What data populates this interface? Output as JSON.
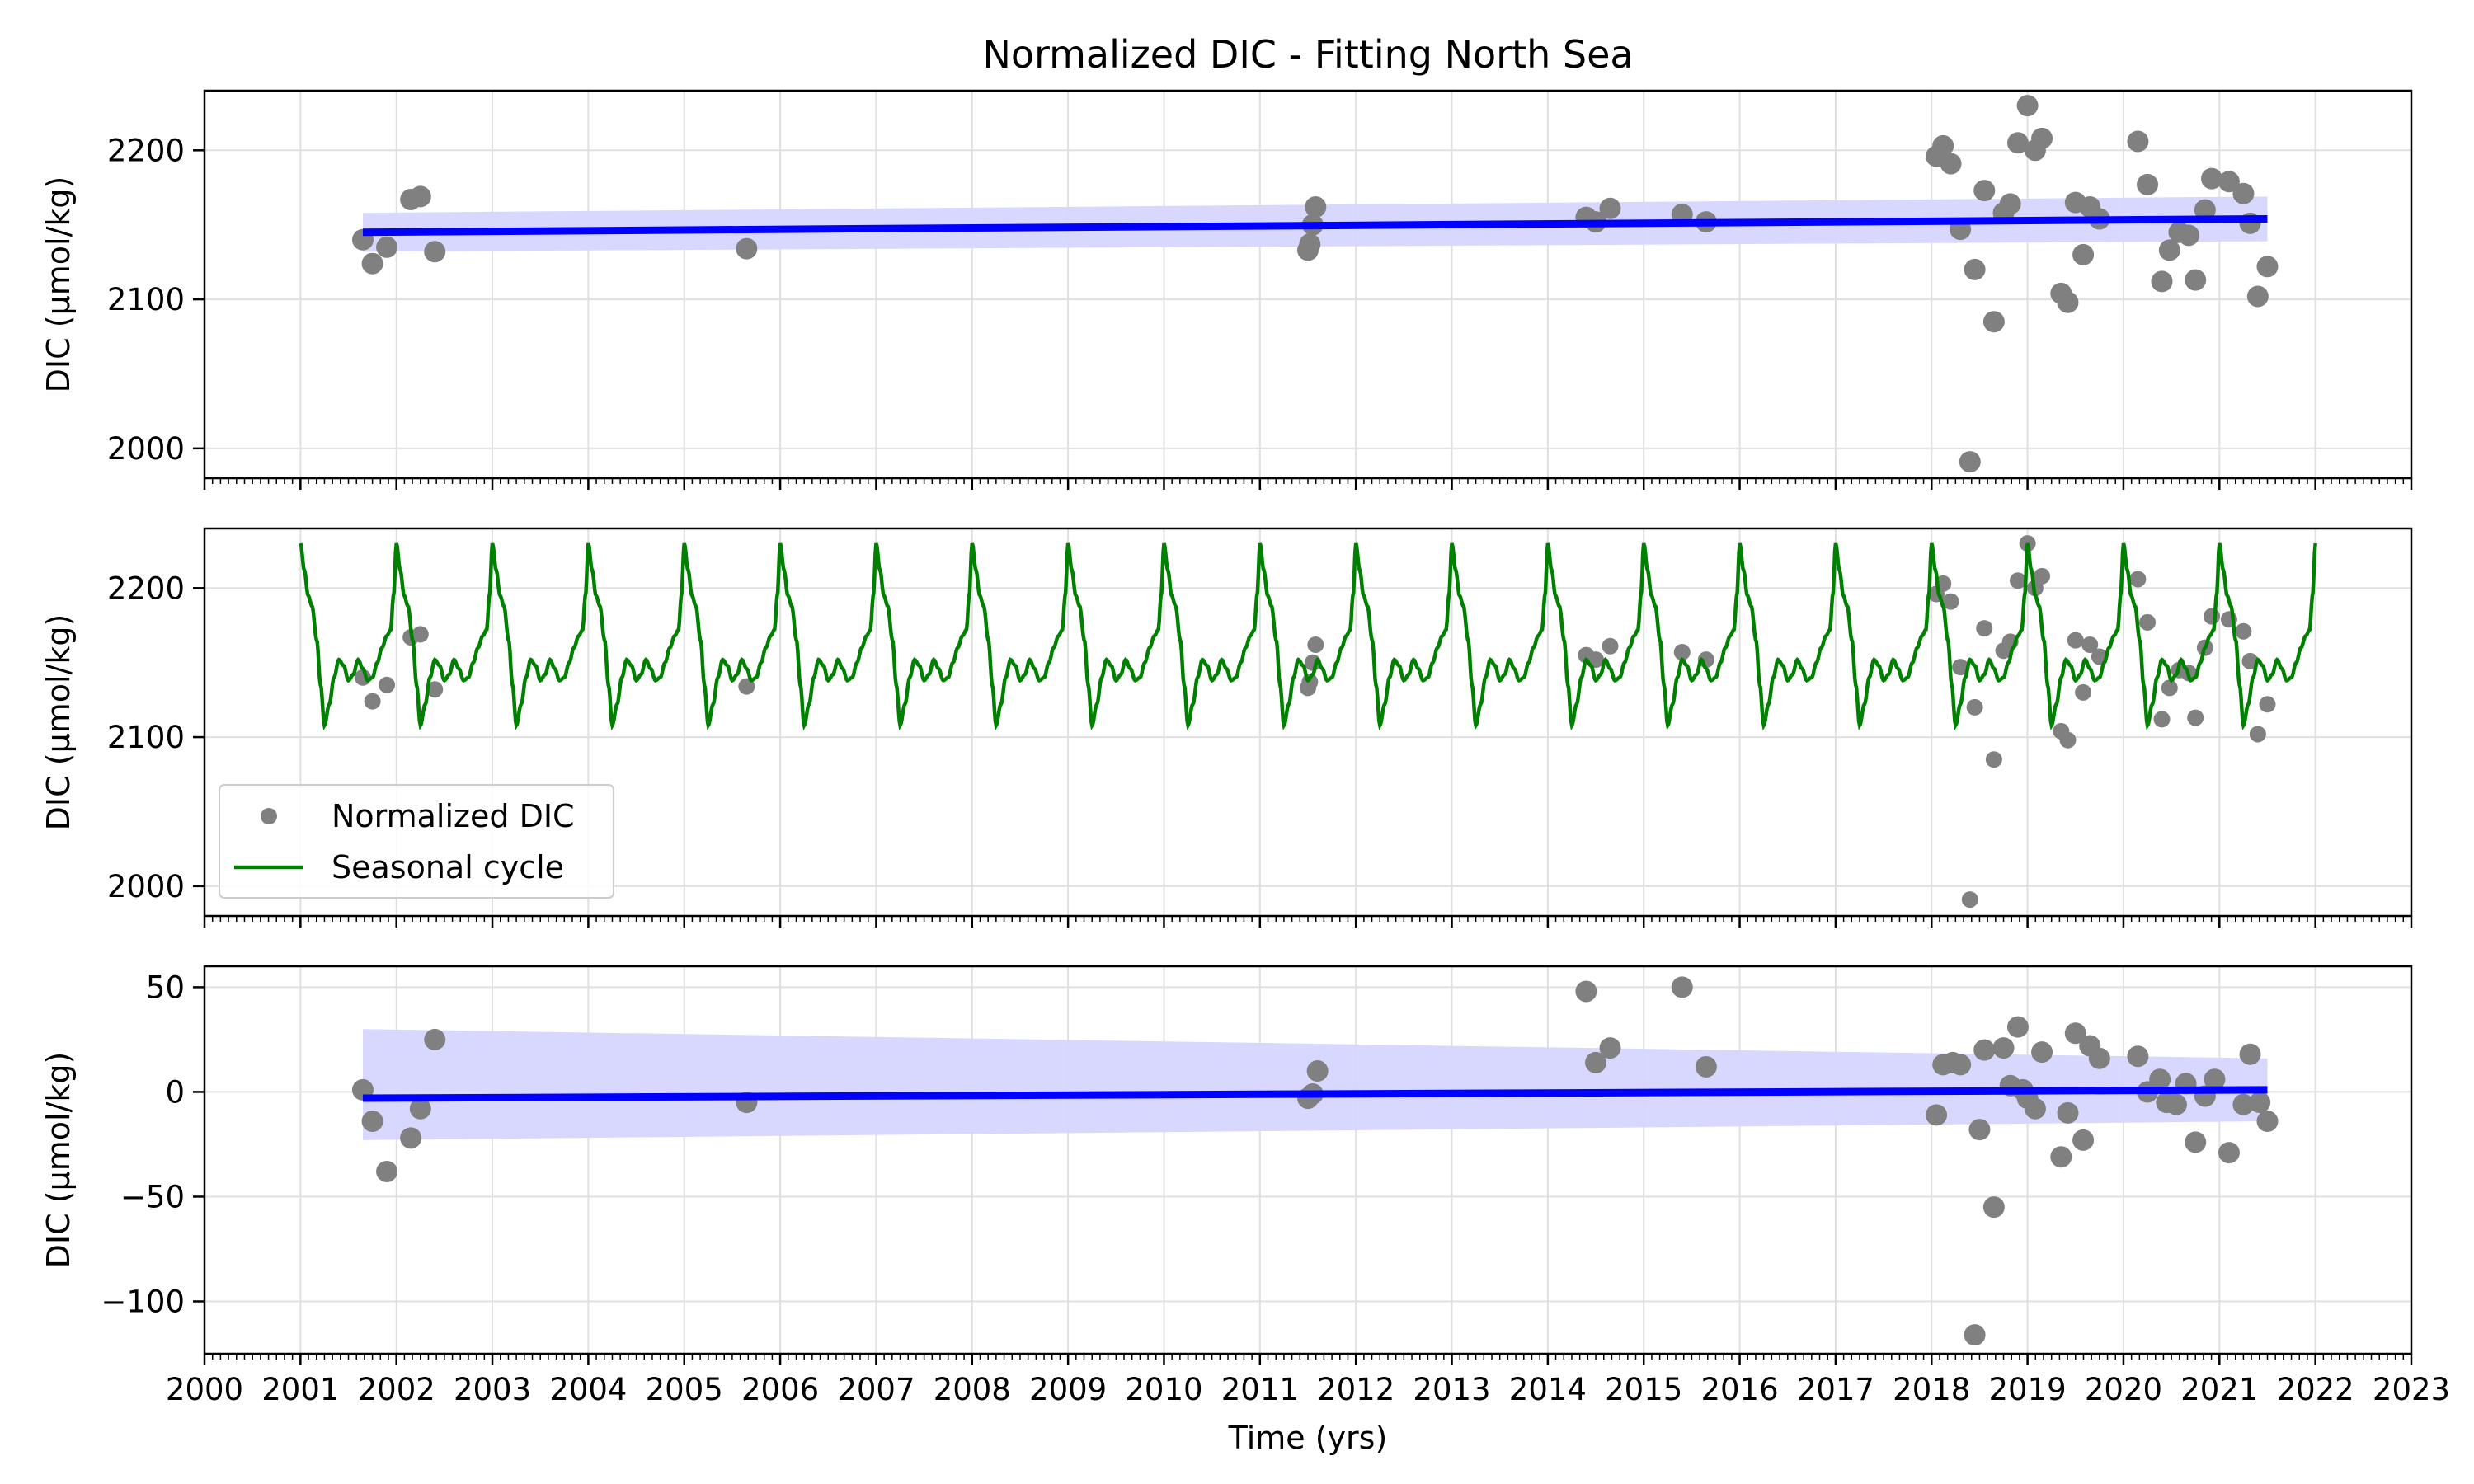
{
  "title": "Normalized DIC - Fitting North Sea",
  "xlabel": "Time (yrs)",
  "colors": {
    "points": "#808080",
    "trend": "#0000ff",
    "band": "#d6d6ff",
    "seasonal": "#008000"
  },
  "chart_data": [
    {
      "type": "scatter",
      "ylabel": "DIC (µmol/kg)",
      "xlim": [
        2000,
        2023
      ],
      "ylim": [
        1980,
        2240
      ],
      "yticks": [
        2000,
        2100,
        2200
      ],
      "grid": true,
      "series": [
        {
          "kind": "scatter",
          "x": [
            2001.65,
            2001.75,
            2001.9,
            2002.15,
            2002.25,
            2002.4,
            2005.65,
            2011.5,
            2011.52,
            2011.55,
            2011.58,
            2014.4,
            2014.5,
            2014.65,
            2015.4,
            2015.65,
            2018.05,
            2018.12,
            2018.2,
            2018.3,
            2018.4,
            2018.45,
            2018.55,
            2018.65,
            2018.75,
            2018.82,
            2018.9,
            2019.0,
            2019.08,
            2019.15,
            2019.35,
            2019.42,
            2019.5,
            2019.58,
            2019.65,
            2019.75,
            2020.15,
            2020.25,
            2020.4,
            2020.48,
            2020.58,
            2020.68,
            2020.75,
            2020.85,
            2020.92,
            2021.1,
            2021.25,
            2021.32,
            2021.4,
            2021.5
          ],
          "y": [
            2140,
            2124,
            2135,
            2167,
            2169,
            2132,
            2134,
            2133,
            2137,
            2150,
            2162,
            2155,
            2152,
            2161,
            2157,
            2152,
            2196,
            2203,
            2191,
            2147,
            1991,
            2120,
            2173,
            2085,
            2158,
            2164,
            2205,
            2230,
            2200,
            2208,
            2104,
            2098,
            2165,
            2130,
            2162,
            2154,
            2206,
            2177,
            2112,
            2133,
            2145,
            2143,
            2113,
            2160,
            2181,
            2179,
            2171,
            2151,
            2102,
            2122
          ]
        },
        {
          "kind": "trend",
          "x": [
            2001.65,
            2021.5
          ],
          "y": [
            2145,
            2154
          ],
          "lower": [
            2132,
            2139
          ],
          "upper": [
            2158,
            2169
          ]
        }
      ]
    },
    {
      "type": "line",
      "ylabel": "DIC (µmol/kg)",
      "xlim": [
        2000,
        2023
      ],
      "ylim": [
        1980,
        2240
      ],
      "yticks": [
        2000,
        2100,
        2200
      ],
      "grid": true,
      "legend": "lower-left",
      "series": [
        {
          "kind": "scatter",
          "name": "Normalized DIC",
          "x": [
            2001.65,
            2001.75,
            2001.9,
            2002.15,
            2002.25,
            2002.4,
            2005.65,
            2011.5,
            2011.52,
            2011.55,
            2011.58,
            2014.4,
            2014.5,
            2014.65,
            2015.4,
            2015.65,
            2018.05,
            2018.12,
            2018.2,
            2018.3,
            2018.4,
            2018.45,
            2018.55,
            2018.65,
            2018.75,
            2018.82,
            2018.9,
            2019.0,
            2019.08,
            2019.15,
            2019.35,
            2019.42,
            2019.5,
            2019.58,
            2019.65,
            2019.75,
            2020.15,
            2020.25,
            2020.4,
            2020.48,
            2020.58,
            2020.68,
            2020.75,
            2020.85,
            2020.92,
            2021.1,
            2021.25,
            2021.32,
            2021.4,
            2021.5
          ],
          "y": [
            2140,
            2124,
            2135,
            2167,
            2169,
            2132,
            2134,
            2133,
            2137,
            2150,
            2162,
            2155,
            2152,
            2161,
            2157,
            2152,
            2196,
            2203,
            2191,
            2147,
            1991,
            2120,
            2173,
            2085,
            2158,
            2164,
            2205,
            2230,
            2200,
            2208,
            2104,
            2098,
            2165,
            2130,
            2162,
            2154,
            2206,
            2177,
            2112,
            2133,
            2145,
            2143,
            2113,
            2160,
            2181,
            2179,
            2171,
            2151,
            2102,
            2122
          ]
        },
        {
          "kind": "seasonal",
          "name": "Seasonal cycle",
          "x_start": 2001,
          "x_end": 2022,
          "cycle_phase": [
            0.0,
            0.04,
            0.08,
            0.12,
            0.17,
            0.21,
            0.25,
            0.3,
            0.35,
            0.4,
            0.45,
            0.5,
            0.55,
            0.6,
            0.65,
            0.7,
            0.75,
            0.8,
            0.85,
            0.9,
            0.94,
            0.97,
            1.0
          ],
          "cycle_value": [
            2230,
            2212,
            2195,
            2188,
            2165,
            2135,
            2108,
            2122,
            2140,
            2152,
            2148,
            2138,
            2142,
            2152,
            2146,
            2138,
            2140,
            2150,
            2160,
            2168,
            2172,
            2195,
            2230
          ]
        }
      ]
    },
    {
      "type": "scatter",
      "ylabel": "DIC (µmol/kg)",
      "xlim": [
        2000,
        2023
      ],
      "ylim": [
        -125,
        60
      ],
      "yticks": [
        50,
        0,
        -50,
        -100
      ],
      "grid": true,
      "series": [
        {
          "kind": "scatter",
          "x": [
            2001.65,
            2001.75,
            2001.9,
            2002.15,
            2002.25,
            2002.4,
            2005.65,
            2011.5,
            2011.55,
            2011.6,
            2014.4,
            2014.5,
            2014.65,
            2015.4,
            2015.65,
            2018.05,
            2018.12,
            2018.22,
            2018.3,
            2018.45,
            2018.5,
            2018.55,
            2018.65,
            2018.75,
            2018.82,
            2018.9,
            2018.95,
            2019.0,
            2019.08,
            2019.15,
            2019.35,
            2019.42,
            2019.5,
            2019.58,
            2019.65,
            2019.75,
            2020.15,
            2020.25,
            2020.38,
            2020.45,
            2020.55,
            2020.65,
            2020.75,
            2020.85,
            2020.95,
            2021.1,
            2021.25,
            2021.32,
            2021.42,
            2021.5
          ],
          "y": [
            1,
            -14,
            -38,
            -22,
            -8,
            25,
            -5,
            -3,
            -1,
            10,
            48,
            14,
            21,
            50,
            12,
            -11,
            13,
            14,
            13,
            -116,
            -18,
            20,
            -55,
            21,
            3,
            31,
            1,
            -3,
            -8,
            19,
            -31,
            -10,
            28,
            -23,
            22,
            16,
            17,
            0,
            6,
            -5,
            -6,
            4,
            -24,
            -2,
            6,
            -29,
            -6,
            18,
            -5,
            -14
          ]
        },
        {
          "kind": "trend",
          "x": [
            2001.65,
            2021.5
          ],
          "y": [
            -3,
            1
          ],
          "lower": [
            -23,
            -14
          ],
          "upper": [
            30,
            16
          ]
        }
      ]
    }
  ],
  "xticks": [
    2000,
    2001,
    2002,
    2003,
    2004,
    2005,
    2006,
    2007,
    2008,
    2009,
    2010,
    2011,
    2012,
    2013,
    2014,
    2015,
    2016,
    2017,
    2018,
    2019,
    2020,
    2021,
    2022,
    2023
  ],
  "legend": {
    "items": [
      "Normalized DIC",
      "Seasonal cycle"
    ]
  }
}
